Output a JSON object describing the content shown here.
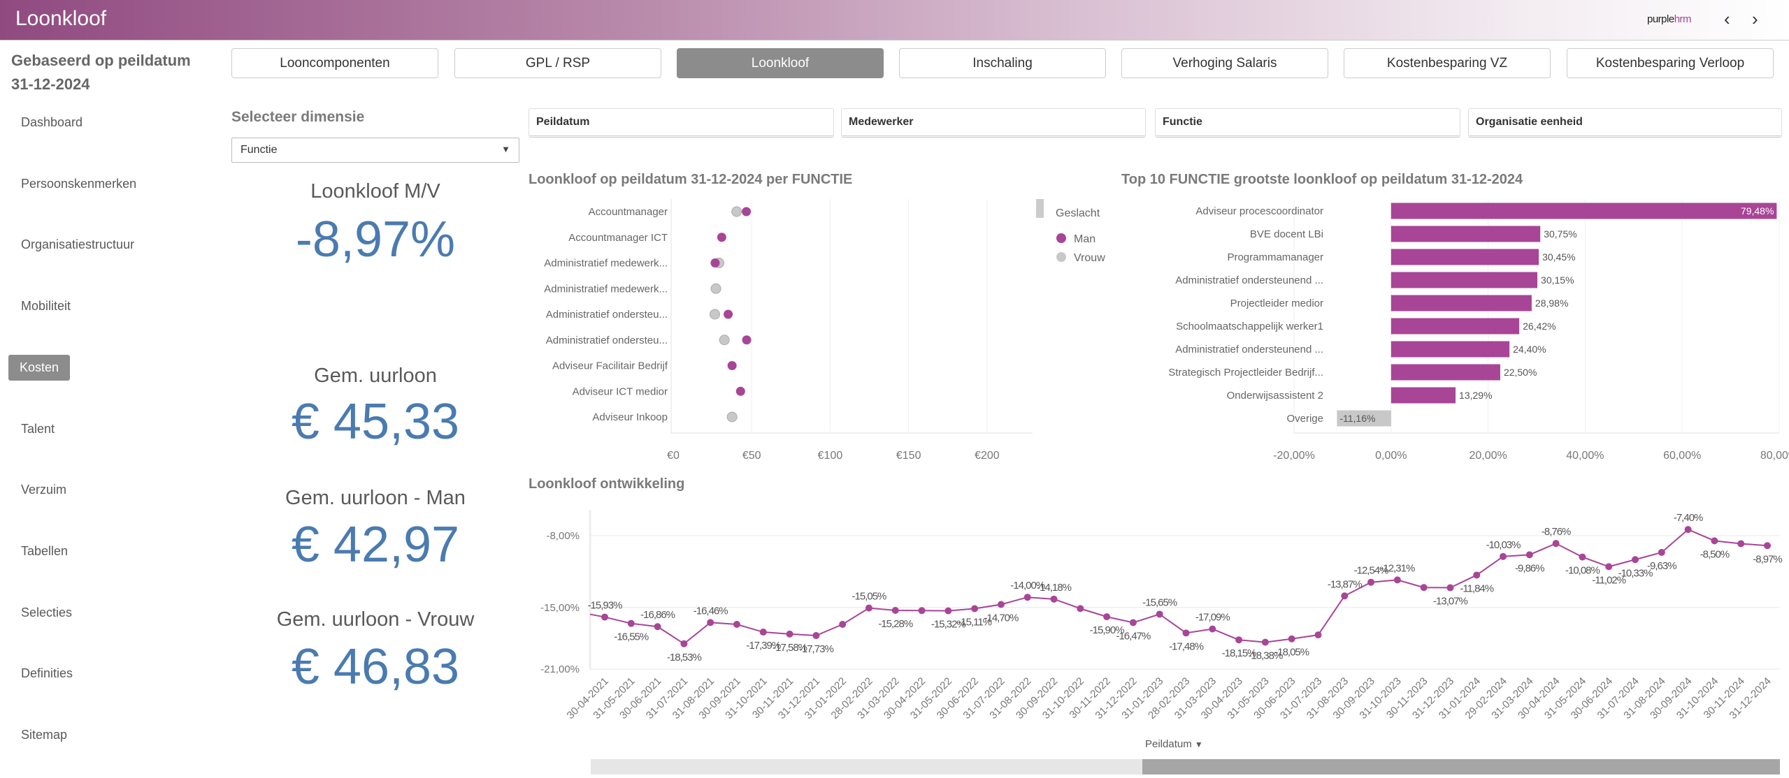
{
  "header": {
    "title": "Loonkloof",
    "brand_a": "purple",
    "brand_b": "hrm",
    "prev_icon": "chevron-left",
    "next_icon": "chevron-right"
  },
  "subtitle": "Gebaseerd op peildatum 31-12-2024",
  "nav_tabs": [
    {
      "label": "Looncomponenten",
      "active": false
    },
    {
      "label": "GPL / RSP",
      "active": false
    },
    {
      "label": "Loonkloof",
      "active": true
    },
    {
      "label": "Inschaling",
      "active": false
    },
    {
      "label": "Verhoging Salaris",
      "active": false
    },
    {
      "label": "Kostenbesparing VZ",
      "active": false
    },
    {
      "label": "Kostenbesparing Verloop",
      "active": false
    }
  ],
  "sidebar": [
    {
      "label": "Dashboard"
    },
    {
      "label": "Persoonskenmerken"
    },
    {
      "label": "Organisatiestructuur"
    },
    {
      "label": "Mobiliteit"
    },
    {
      "label": "Kosten",
      "active": true
    },
    {
      "label": "Talent"
    },
    {
      "label": "Verzuim"
    },
    {
      "label": "Tabellen"
    },
    {
      "label": "Selecties"
    },
    {
      "label": "Definities"
    },
    {
      "label": "Sitemap"
    }
  ],
  "dimension": {
    "label": "Selecteer dimensie",
    "value": "Functie"
  },
  "kpis": [
    {
      "label": "Loonkloof M/V",
      "value": "-8,97%"
    },
    {
      "label": "Gem. uurloon",
      "value": "€ 45,33"
    },
    {
      "label": "Gem. uurloon - Man",
      "value": "€ 42,97"
    },
    {
      "label": "Gem. uurloon - Vrouw",
      "value": "€ 46,83"
    }
  ],
  "filters": [
    "Peildatum",
    "Medewerker",
    "Functie",
    "Organisatie eenheid"
  ],
  "colors": {
    "man": "#a84597",
    "vrouw": "#c8c8c8",
    "kpi": "#4a7bb0",
    "overige": "#c8c8c8"
  },
  "chart_data": [
    {
      "type": "scatter",
      "title": "Loonkloof op peildatum 31-12-2024 per FUNCTIE",
      "legend_title": "Geslacht",
      "legend_position": "right",
      "xlim": [
        0,
        229
      ],
      "x_ticks": [
        "€0",
        "€50",
        "€100",
        "€150",
        "€200"
      ],
      "x_tick_values": [
        0,
        50,
        100,
        150,
        200
      ],
      "categories": [
        "Accountmanager",
        "Accountmanager ICT",
        "Administratief medewerk...",
        "Administratief medewerk...",
        "Administratief ondersteu...",
        "Administratief ondersteu...",
        "Adviseur Facilitair Bedrijf",
        "Adviseur ICT medior",
        "Adviseur Inkoop"
      ],
      "series": [
        {
          "name": "Man",
          "values": [
            46.6,
            30.9,
            26.7,
            null,
            35.0,
            46.8,
            37.5,
            42.9,
            null
          ]
        },
        {
          "name": "Vrouw",
          "values": [
            40.4,
            null,
            29.2,
            27.2,
            26.5,
            32.6,
            null,
            null,
            37.5
          ]
        }
      ]
    },
    {
      "type": "bar",
      "orientation": "horizontal",
      "title": "Top 10 FUNCTIE grootste loonkloof op peildatum 31-12-2024",
      "xlim": [
        -20,
        80
      ],
      "x_ticks": [
        "-20,00%",
        "0,00%",
        "20,00%",
        "40,00%",
        "60,00%",
        "80,00%"
      ],
      "x_tick_values": [
        -20,
        0,
        20,
        40,
        60,
        80
      ],
      "categories": [
        "Adviseur procescoordinator",
        "BVE docent LBi",
        "Programmamanager",
        "Administratief ondersteunend ...",
        "Projectleider medior",
        "Schoolmaatschappelijk werker1",
        "Administratief ondersteunend ...",
        "Strategisch Projectleider Bedrijf...",
        "Onderwijsassistent 2",
        "Overige"
      ],
      "values": [
        79.48,
        30.75,
        30.45,
        30.15,
        28.98,
        26.42,
        24.4,
        22.5,
        13.29,
        -11.16
      ]
    },
    {
      "type": "line",
      "title": "Loonkloof ontwikkeling",
      "xlabel": "Peildatum",
      "y_ticks": [
        "-8,00%",
        "-15,00%",
        "-21,00%"
      ],
      "y_tick_values": [
        -8,
        -15,
        -21
      ],
      "grid": true,
      "categories": [
        "30-04-2021",
        "31-05-2021",
        "30-06-2021",
        "31-07-2021",
        "31-08-2021",
        "30-09-2021",
        "31-10-2021",
        "30-11-2021",
        "31-12-2021",
        "31-01-2022",
        "28-02-2022",
        "31-03-2022",
        "30-04-2022",
        "31-05-2022",
        "30-06-2022",
        "31-07-2022",
        "31-08-2022",
        "30-09-2022",
        "31-10-2022",
        "30-11-2022",
        "31-12-2022",
        "31-01-2023",
        "28-02-2023",
        "31-03-2023",
        "30-04-2023",
        "31-05-2023",
        "30-06-2023",
        "31-07-2023",
        "31-08-2023",
        "30-09-2023",
        "31-10-2023",
        "30-11-2023",
        "31-12-2023",
        "31-01-2024",
        "29-02-2024",
        "31-03-2024",
        "30-04-2024",
        "31-05-2024",
        "30-06-2024",
        "31-07-2024",
        "31-08-2024",
        "30-09-2024",
        "31-10-2024",
        "30-11-2024",
        "31-12-2024"
      ],
      "values": [
        -15.93,
        -16.55,
        -16.86,
        -18.53,
        -16.46,
        -16.64,
        -17.39,
        -17.58,
        -17.73,
        -16.64,
        -15.05,
        -15.28,
        -15.3,
        -15.32,
        -15.11,
        -14.7,
        -14.0,
        -14.18,
        -15.1,
        -15.9,
        -16.47,
        -15.65,
        -17.48,
        -17.09,
        -18.15,
        -18.38,
        -18.05,
        -17.67,
        -13.87,
        -12.54,
        -12.31,
        -13.05,
        -13.07,
        -11.84,
        -10.03,
        -9.86,
        -8.76,
        -10.08,
        -11.02,
        -10.33,
        -9.63,
        -7.4,
        -8.5,
        -8.78,
        -8.97
      ],
      "labeled": [
        true,
        true,
        true,
        true,
        true,
        false,
        true,
        true,
        true,
        false,
        true,
        true,
        false,
        true,
        true,
        true,
        true,
        true,
        false,
        true,
        true,
        true,
        true,
        true,
        true,
        true,
        true,
        false,
        true,
        true,
        true,
        false,
        true,
        true,
        true,
        true,
        true,
        true,
        true,
        true,
        true,
        true,
        true,
        false,
        true
      ]
    }
  ]
}
